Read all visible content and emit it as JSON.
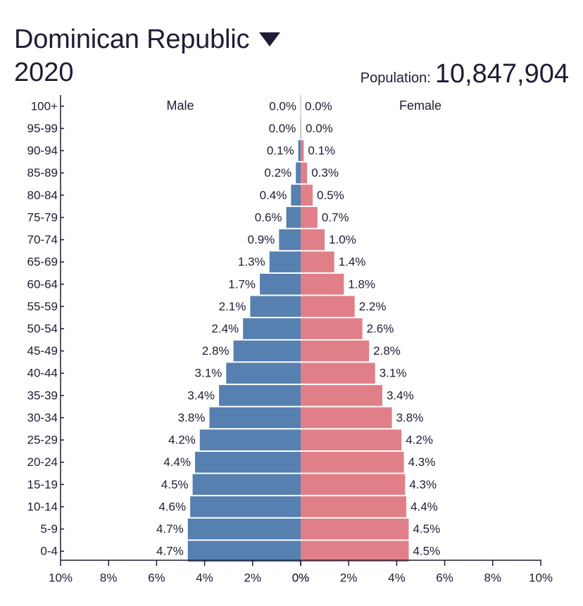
{
  "header": {
    "country": "Dominican Republic",
    "year": "2020",
    "population_label": "Population:",
    "population_value": "10,847,904"
  },
  "colors": {
    "male": "#5580b0",
    "female": "#e17f88",
    "text": "#1d1d35",
    "axis": "#1d1d35",
    "center_line": "#c8c8d0"
  },
  "chart_data": {
    "type": "bar",
    "orientation": "horizontal",
    "series_labels": {
      "male": "Male",
      "female": "Female"
    },
    "age_groups": [
      "100+",
      "95-99",
      "90-94",
      "85-89",
      "80-84",
      "75-79",
      "70-74",
      "65-69",
      "60-64",
      "55-59",
      "50-54",
      "45-49",
      "40-44",
      "35-39",
      "30-34",
      "25-29",
      "20-24",
      "15-19",
      "10-14",
      "5-9",
      "0-4"
    ],
    "male_values": [
      0.0,
      0.02,
      0.1,
      0.2,
      0.4,
      0.6,
      0.9,
      1.3,
      1.7,
      2.1,
      2.4,
      2.8,
      3.1,
      3.4,
      3.8,
      4.2,
      4.4,
      4.5,
      4.6,
      4.7,
      4.7
    ],
    "male_labels": [
      "0.0%",
      "0.0%",
      "0.1%",
      "0.2%",
      "0.4%",
      "0.6%",
      "0.9%",
      "1.3%",
      "1.7%",
      "2.1%",
      "2.4%",
      "2.8%",
      "3.1%",
      "3.4%",
      "3.8%",
      "4.2%",
      "4.4%",
      "4.5%",
      "4.6%",
      "4.7%",
      "4.7%"
    ],
    "female_values": [
      0.0,
      0.03,
      0.13,
      0.27,
      0.5,
      0.7,
      1.0,
      1.4,
      1.8,
      2.25,
      2.57,
      2.85,
      3.1,
      3.4,
      3.8,
      4.2,
      4.3,
      4.35,
      4.4,
      4.5,
      4.5
    ],
    "female_labels": [
      "0.0%",
      "0.0%",
      "0.1%",
      "0.3%",
      "0.5%",
      "0.7%",
      "1.0%",
      "1.4%",
      "1.8%",
      "2.2%",
      "2.6%",
      "2.8%",
      "3.1%",
      "3.4%",
      "3.8%",
      "4.2%",
      "4.3%",
      "4.3%",
      "4.4%",
      "4.5%",
      "4.5%"
    ],
    "x_ticks": [
      "10%",
      "8%",
      "6%",
      "4%",
      "2%",
      "0%",
      "0%",
      "2%",
      "4%",
      "6%",
      "8%",
      "10%"
    ],
    "x_range": [
      -10,
      10
    ],
    "unit": "%"
  }
}
